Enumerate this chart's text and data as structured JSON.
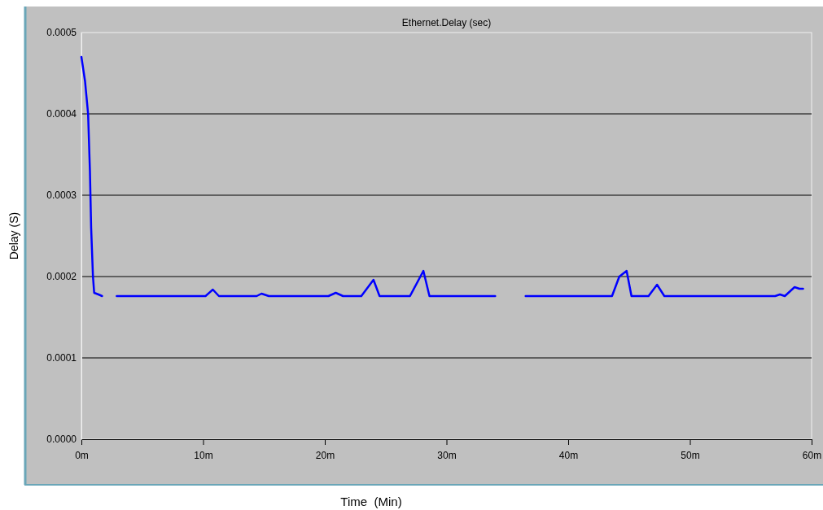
{
  "chart_data": {
    "type": "line",
    "title": "Ethernet.Delay (sec)",
    "xlabel": "Time  (Min)",
    "ylabel": "Delay (S)",
    "xlim": [
      0,
      60
    ],
    "xticks": [
      {
        "value": 0,
        "label": "0m"
      },
      {
        "value": 10,
        "label": "10m"
      },
      {
        "value": 20,
        "label": "20m"
      },
      {
        "value": 30,
        "label": "30m"
      },
      {
        "value": 40,
        "label": "40m"
      },
      {
        "value": 50,
        "label": "50m"
      },
      {
        "value": 60,
        "label": "60m"
      }
    ],
    "ylim": [
      0,
      0.0005
    ],
    "yticks": [
      {
        "value": 0,
        "label": "0.0000"
      },
      {
        "value": 0.0001,
        "label": "0.0001"
      },
      {
        "value": 0.0002,
        "label": "0.0002"
      },
      {
        "value": 0.0003,
        "label": "0.0003"
      },
      {
        "value": 0.0004,
        "label": "0.0004"
      },
      {
        "value": 0.0005,
        "label": "0.0005"
      }
    ],
    "grid": "y",
    "line_style": "solid",
    "x": [
      0,
      0.3,
      0.55,
      0.7,
      0.8,
      0.95,
      1.05,
      1.4,
      1.7,
      2.3,
      2.9,
      10.2,
      10.8,
      11.3,
      14.4,
      14.8,
      15.4,
      20.3,
      20.9,
      21.5,
      23.0,
      24.0,
      24.5,
      27.0,
      28.1,
      28.6,
      34.0,
      35.3,
      36.5,
      43.6,
      44.2,
      44.8,
      45.2,
      46.6,
      47.3,
      47.9,
      57.0,
      57.4,
      57.8,
      58.6,
      59.0,
      59.3
    ],
    "series": [
      {
        "color": "#0000ff",
        "values": [
          0.00047,
          0.00044,
          0.0004,
          0.00033,
          0.00026,
          0.0002,
          0.00018,
          0.000178,
          0.000176,
          null,
          0.000176,
          0.000176,
          0.000184,
          0.000176,
          0.000176,
          0.000179,
          0.000176,
          0.000176,
          0.00018,
          0.000176,
          0.000176,
          0.000196,
          0.000176,
          0.000176,
          0.000207,
          0.000176,
          0.000176,
          null,
          0.000176,
          0.000176,
          0.0002,
          0.000207,
          0.000176,
          0.000176,
          0.00019,
          0.000176,
          0.000176,
          0.000178,
          0.000176,
          0.000187,
          0.000185,
          0.000185
        ]
      }
    ]
  }
}
